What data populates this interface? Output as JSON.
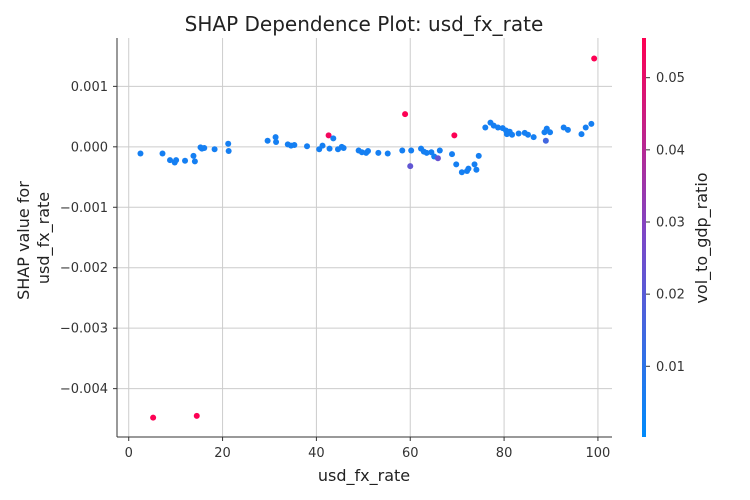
{
  "chart_data": {
    "type": "scatter",
    "title": "SHAP Dependence Plot: usd_fx_rate",
    "xlabel": "usd_fx_rate",
    "ylabel_lines": [
      "SHAP value for",
      "usd_fx_rate"
    ],
    "xlim": [
      -2.5,
      103
    ],
    "ylim": [
      -0.0048,
      0.0018
    ],
    "x_ticks": [
      0,
      20,
      40,
      60,
      80,
      100
    ],
    "x_tick_labels": [
      "0",
      "20",
      "40",
      "60",
      "80",
      "100"
    ],
    "y_ticks": [
      -0.004,
      -0.003,
      -0.002,
      -0.001,
      0.0,
      0.001
    ],
    "y_tick_labels": [
      "−0.004",
      "−0.003",
      "−0.002",
      "−0.001",
      "0.000",
      "0.001"
    ],
    "grid": true,
    "colorbar": {
      "label": "vol_to_gdp_ratio",
      "range": [
        0.0002,
        0.0555
      ],
      "ticks": [
        0.01,
        0.02,
        0.03,
        0.04,
        0.05
      ],
      "tick_labels": [
        "0.01",
        "0.02",
        "0.03",
        "0.04",
        "0.05"
      ],
      "colors": [
        "#008bfb",
        "#7b48c8",
        "#ff0052"
      ]
    },
    "points": [
      {
        "x": 2.5,
        "y": -0.00011,
        "c": 0.005
      },
      {
        "x": 5.2,
        "y": -0.00448,
        "c": 0.055
      },
      {
        "x": 7.2,
        "y": -0.00011,
        "c": 0.005
      },
      {
        "x": 8.8,
        "y": -0.00022,
        "c": 0.005
      },
      {
        "x": 9.8,
        "y": -0.00026,
        "c": 0.005
      },
      {
        "x": 10.1,
        "y": -0.00022,
        "c": 0.005
      },
      {
        "x": 12.0,
        "y": -0.00023,
        "c": 0.005
      },
      {
        "x": 13.8,
        "y": -0.00015,
        "c": 0.005
      },
      {
        "x": 14.1,
        "y": -0.00024,
        "c": 0.005
      },
      {
        "x": 14.5,
        "y": -0.00445,
        "c": 0.055
      },
      {
        "x": 15.3,
        "y": -1e-05,
        "c": 0.005
      },
      {
        "x": 15.6,
        "y": -3e-05,
        "c": 0.005
      },
      {
        "x": 16.1,
        "y": -2e-05,
        "c": 0.005
      },
      {
        "x": 18.3,
        "y": -4e-05,
        "c": 0.005
      },
      {
        "x": 21.2,
        "y": 5e-05,
        "c": 0.005
      },
      {
        "x": 21.3,
        "y": -7e-05,
        "c": 0.005
      },
      {
        "x": 29.6,
        "y": 0.0001,
        "c": 0.005
      },
      {
        "x": 31.3,
        "y": 0.00016,
        "c": 0.005
      },
      {
        "x": 31.4,
        "y": 8e-05,
        "c": 0.005
      },
      {
        "x": 33.9,
        "y": 4e-05,
        "c": 0.005
      },
      {
        "x": 34.6,
        "y": 2e-05,
        "c": 0.005
      },
      {
        "x": 35.3,
        "y": 3e-05,
        "c": 0.005
      },
      {
        "x": 38.0,
        "y": 1e-05,
        "c": 0.005
      },
      {
        "x": 40.6,
        "y": -4e-05,
        "c": 0.005
      },
      {
        "x": 41.3,
        "y": 2e-05,
        "c": 0.005
      },
      {
        "x": 42.6,
        "y": 0.00019,
        "c": 0.053
      },
      {
        "x": 42.8,
        "y": -3e-05,
        "c": 0.005
      },
      {
        "x": 43.6,
        "y": 0.00014,
        "c": 0.005
      },
      {
        "x": 44.6,
        "y": -4e-05,
        "c": 0.005
      },
      {
        "x": 45.4,
        "y": 0.0,
        "c": 0.005
      },
      {
        "x": 45.8,
        "y": -2e-05,
        "c": 0.005
      },
      {
        "x": 49.0,
        "y": -6e-05,
        "c": 0.005
      },
      {
        "x": 49.7,
        "y": -9e-05,
        "c": 0.005
      },
      {
        "x": 50.6,
        "y": -0.0001,
        "c": 0.005
      },
      {
        "x": 51.0,
        "y": -7e-05,
        "c": 0.005
      },
      {
        "x": 53.2,
        "y": -0.0001,
        "c": 0.005
      },
      {
        "x": 55.2,
        "y": -0.00011,
        "c": 0.005
      },
      {
        "x": 58.3,
        "y": -6e-05,
        "c": 0.005
      },
      {
        "x": 58.9,
        "y": 0.00054,
        "c": 0.055
      },
      {
        "x": 60.0,
        "y": -0.00032,
        "c": 0.022
      },
      {
        "x": 60.2,
        "y": -6e-05,
        "c": 0.005
      },
      {
        "x": 62.3,
        "y": -3e-05,
        "c": 0.005
      },
      {
        "x": 62.9,
        "y": -8e-05,
        "c": 0.005
      },
      {
        "x": 63.5,
        "y": -0.0001,
        "c": 0.005
      },
      {
        "x": 64.5,
        "y": -9e-05,
        "c": 0.005
      },
      {
        "x": 65.1,
        "y": -0.00016,
        "c": 0.005
      },
      {
        "x": 65.9,
        "y": -0.00019,
        "c": 0.023
      },
      {
        "x": 66.3,
        "y": -6e-05,
        "c": 0.005
      },
      {
        "x": 68.9,
        "y": -0.00012,
        "c": 0.005
      },
      {
        "x": 69.4,
        "y": 0.00019,
        "c": 0.055
      },
      {
        "x": 69.8,
        "y": -0.00029,
        "c": 0.005
      },
      {
        "x": 71.0,
        "y": -0.00042,
        "c": 0.005
      },
      {
        "x": 72.1,
        "y": -0.0004,
        "c": 0.005
      },
      {
        "x": 72.4,
        "y": -0.00036,
        "c": 0.005
      },
      {
        "x": 73.7,
        "y": -0.00029,
        "c": 0.005
      },
      {
        "x": 74.1,
        "y": -0.00038,
        "c": 0.005
      },
      {
        "x": 74.6,
        "y": -0.00015,
        "c": 0.005
      },
      {
        "x": 76.0,
        "y": 0.00032,
        "c": 0.005
      },
      {
        "x": 77.1,
        "y": 0.0004,
        "c": 0.005
      },
      {
        "x": 77.8,
        "y": 0.00035,
        "c": 0.005
      },
      {
        "x": 78.7,
        "y": 0.00032,
        "c": 0.005
      },
      {
        "x": 79.7,
        "y": 0.00031,
        "c": 0.005
      },
      {
        "x": 80.4,
        "y": 0.00027,
        "c": 0.005
      },
      {
        "x": 80.6,
        "y": 0.00021,
        "c": 0.005
      },
      {
        "x": 81.2,
        "y": 0.00025,
        "c": 0.005
      },
      {
        "x": 81.7,
        "y": 0.0002,
        "c": 0.005
      },
      {
        "x": 83.1,
        "y": 0.00022,
        "c": 0.005
      },
      {
        "x": 84.4,
        "y": 0.00023,
        "c": 0.005
      },
      {
        "x": 85.1,
        "y": 0.0002,
        "c": 0.005
      },
      {
        "x": 86.3,
        "y": 0.00016,
        "c": 0.005
      },
      {
        "x": 88.6,
        "y": 0.00024,
        "c": 0.005
      },
      {
        "x": 88.9,
        "y": 0.0001,
        "c": 0.015
      },
      {
        "x": 89.1,
        "y": 0.0003,
        "c": 0.005
      },
      {
        "x": 89.8,
        "y": 0.00024,
        "c": 0.005
      },
      {
        "x": 92.7,
        "y": 0.00032,
        "c": 0.005
      },
      {
        "x": 93.6,
        "y": 0.00028,
        "c": 0.005
      },
      {
        "x": 96.5,
        "y": 0.00021,
        "c": 0.005
      },
      {
        "x": 97.4,
        "y": 0.00032,
        "c": 0.005
      },
      {
        "x": 98.6,
        "y": 0.00038,
        "c": 0.005
      },
      {
        "x": 99.2,
        "y": 0.00146,
        "c": 0.055
      }
    ]
  }
}
